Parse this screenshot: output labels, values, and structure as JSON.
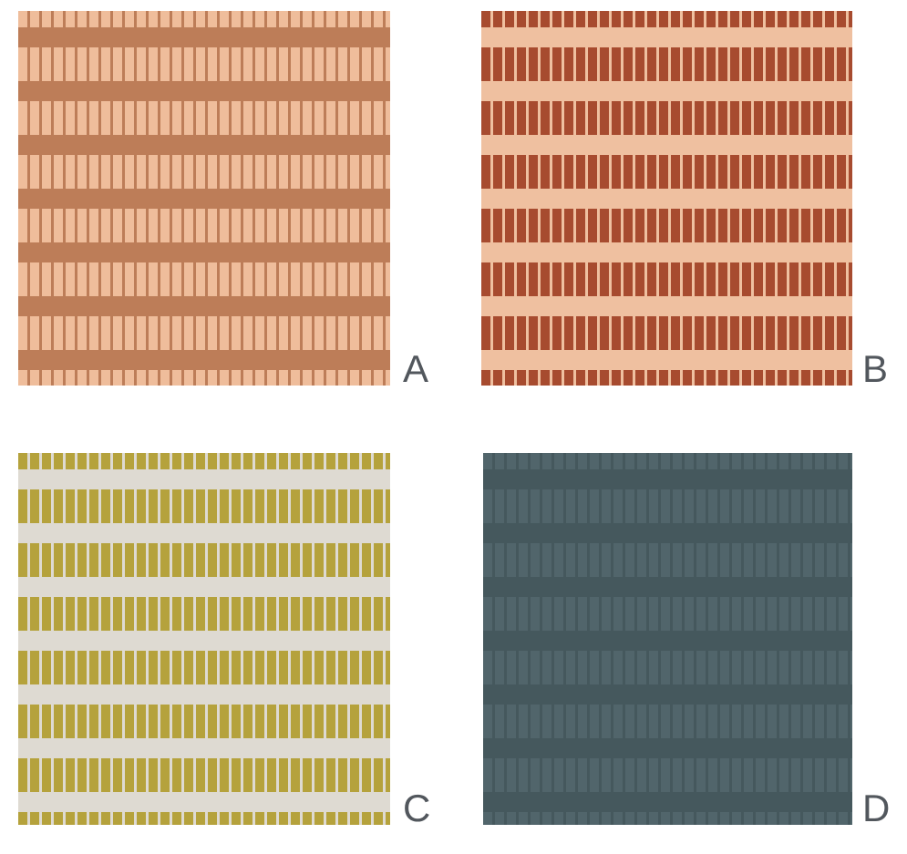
{
  "page": {
    "background_color": "#ffffff",
    "label_color": "#52575d"
  },
  "panels": [
    {
      "id": "A",
      "label": "A",
      "background": "#bd7d58",
      "bar": "#efbd9b"
    },
    {
      "id": "B",
      "label": "B",
      "background": "#efc0a0",
      "bar": "#a74b2f"
    },
    {
      "id": "C",
      "label": "C",
      "background": "#dedad2",
      "bar": "#b5a23c"
    },
    {
      "id": "D",
      "label": "D",
      "background": "#45585d",
      "bar": "#51656b"
    }
  ]
}
